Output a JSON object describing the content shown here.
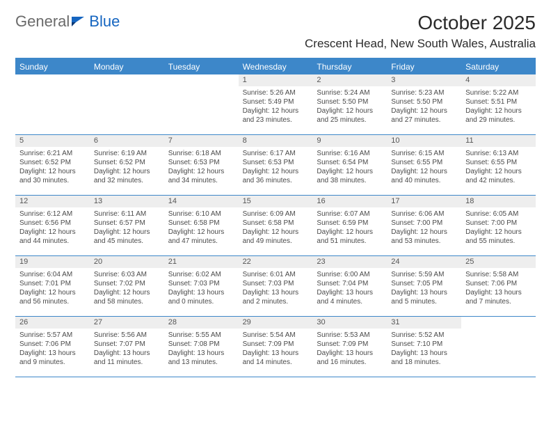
{
  "brand": {
    "part1": "General",
    "part2": "Blue"
  },
  "title": "October 2025",
  "location": "Crescent Head, New South Wales, Australia",
  "colors": {
    "header_blue": "#3d87c9",
    "daynum_bg": "#eeeeee",
    "brand_blue": "#1565c0"
  },
  "dow": [
    "Sunday",
    "Monday",
    "Tuesday",
    "Wednesday",
    "Thursday",
    "Friday",
    "Saturday"
  ],
  "weeks": [
    [
      {
        "n": "",
        "sr": "",
        "ss": "",
        "dl": ""
      },
      {
        "n": "",
        "sr": "",
        "ss": "",
        "dl": ""
      },
      {
        "n": "",
        "sr": "",
        "ss": "",
        "dl": ""
      },
      {
        "n": "1",
        "sr": "Sunrise: 5:26 AM",
        "ss": "Sunset: 5:49 PM",
        "dl": "Daylight: 12 hours and 23 minutes."
      },
      {
        "n": "2",
        "sr": "Sunrise: 5:24 AM",
        "ss": "Sunset: 5:50 PM",
        "dl": "Daylight: 12 hours and 25 minutes."
      },
      {
        "n": "3",
        "sr": "Sunrise: 5:23 AM",
        "ss": "Sunset: 5:50 PM",
        "dl": "Daylight: 12 hours and 27 minutes."
      },
      {
        "n": "4",
        "sr": "Sunrise: 5:22 AM",
        "ss": "Sunset: 5:51 PM",
        "dl": "Daylight: 12 hours and 29 minutes."
      }
    ],
    [
      {
        "n": "5",
        "sr": "Sunrise: 6:21 AM",
        "ss": "Sunset: 6:52 PM",
        "dl": "Daylight: 12 hours and 30 minutes."
      },
      {
        "n": "6",
        "sr": "Sunrise: 6:19 AM",
        "ss": "Sunset: 6:52 PM",
        "dl": "Daylight: 12 hours and 32 minutes."
      },
      {
        "n": "7",
        "sr": "Sunrise: 6:18 AM",
        "ss": "Sunset: 6:53 PM",
        "dl": "Daylight: 12 hours and 34 minutes."
      },
      {
        "n": "8",
        "sr": "Sunrise: 6:17 AM",
        "ss": "Sunset: 6:53 PM",
        "dl": "Daylight: 12 hours and 36 minutes."
      },
      {
        "n": "9",
        "sr": "Sunrise: 6:16 AM",
        "ss": "Sunset: 6:54 PM",
        "dl": "Daylight: 12 hours and 38 minutes."
      },
      {
        "n": "10",
        "sr": "Sunrise: 6:15 AM",
        "ss": "Sunset: 6:55 PM",
        "dl": "Daylight: 12 hours and 40 minutes."
      },
      {
        "n": "11",
        "sr": "Sunrise: 6:13 AM",
        "ss": "Sunset: 6:55 PM",
        "dl": "Daylight: 12 hours and 42 minutes."
      }
    ],
    [
      {
        "n": "12",
        "sr": "Sunrise: 6:12 AM",
        "ss": "Sunset: 6:56 PM",
        "dl": "Daylight: 12 hours and 44 minutes."
      },
      {
        "n": "13",
        "sr": "Sunrise: 6:11 AM",
        "ss": "Sunset: 6:57 PM",
        "dl": "Daylight: 12 hours and 45 minutes."
      },
      {
        "n": "14",
        "sr": "Sunrise: 6:10 AM",
        "ss": "Sunset: 6:58 PM",
        "dl": "Daylight: 12 hours and 47 minutes."
      },
      {
        "n": "15",
        "sr": "Sunrise: 6:09 AM",
        "ss": "Sunset: 6:58 PM",
        "dl": "Daylight: 12 hours and 49 minutes."
      },
      {
        "n": "16",
        "sr": "Sunrise: 6:07 AM",
        "ss": "Sunset: 6:59 PM",
        "dl": "Daylight: 12 hours and 51 minutes."
      },
      {
        "n": "17",
        "sr": "Sunrise: 6:06 AM",
        "ss": "Sunset: 7:00 PM",
        "dl": "Daylight: 12 hours and 53 minutes."
      },
      {
        "n": "18",
        "sr": "Sunrise: 6:05 AM",
        "ss": "Sunset: 7:00 PM",
        "dl": "Daylight: 12 hours and 55 minutes."
      }
    ],
    [
      {
        "n": "19",
        "sr": "Sunrise: 6:04 AM",
        "ss": "Sunset: 7:01 PM",
        "dl": "Daylight: 12 hours and 56 minutes."
      },
      {
        "n": "20",
        "sr": "Sunrise: 6:03 AM",
        "ss": "Sunset: 7:02 PM",
        "dl": "Daylight: 12 hours and 58 minutes."
      },
      {
        "n": "21",
        "sr": "Sunrise: 6:02 AM",
        "ss": "Sunset: 7:03 PM",
        "dl": "Daylight: 13 hours and 0 minutes."
      },
      {
        "n": "22",
        "sr": "Sunrise: 6:01 AM",
        "ss": "Sunset: 7:03 PM",
        "dl": "Daylight: 13 hours and 2 minutes."
      },
      {
        "n": "23",
        "sr": "Sunrise: 6:00 AM",
        "ss": "Sunset: 7:04 PM",
        "dl": "Daylight: 13 hours and 4 minutes."
      },
      {
        "n": "24",
        "sr": "Sunrise: 5:59 AM",
        "ss": "Sunset: 7:05 PM",
        "dl": "Daylight: 13 hours and 5 minutes."
      },
      {
        "n": "25",
        "sr": "Sunrise: 5:58 AM",
        "ss": "Sunset: 7:06 PM",
        "dl": "Daylight: 13 hours and 7 minutes."
      }
    ],
    [
      {
        "n": "26",
        "sr": "Sunrise: 5:57 AM",
        "ss": "Sunset: 7:06 PM",
        "dl": "Daylight: 13 hours and 9 minutes."
      },
      {
        "n": "27",
        "sr": "Sunrise: 5:56 AM",
        "ss": "Sunset: 7:07 PM",
        "dl": "Daylight: 13 hours and 11 minutes."
      },
      {
        "n": "28",
        "sr": "Sunrise: 5:55 AM",
        "ss": "Sunset: 7:08 PM",
        "dl": "Daylight: 13 hours and 13 minutes."
      },
      {
        "n": "29",
        "sr": "Sunrise: 5:54 AM",
        "ss": "Sunset: 7:09 PM",
        "dl": "Daylight: 13 hours and 14 minutes."
      },
      {
        "n": "30",
        "sr": "Sunrise: 5:53 AM",
        "ss": "Sunset: 7:09 PM",
        "dl": "Daylight: 13 hours and 16 minutes."
      },
      {
        "n": "31",
        "sr": "Sunrise: 5:52 AM",
        "ss": "Sunset: 7:10 PM",
        "dl": "Daylight: 13 hours and 18 minutes."
      },
      {
        "n": "",
        "sr": "",
        "ss": "",
        "dl": ""
      }
    ]
  ]
}
